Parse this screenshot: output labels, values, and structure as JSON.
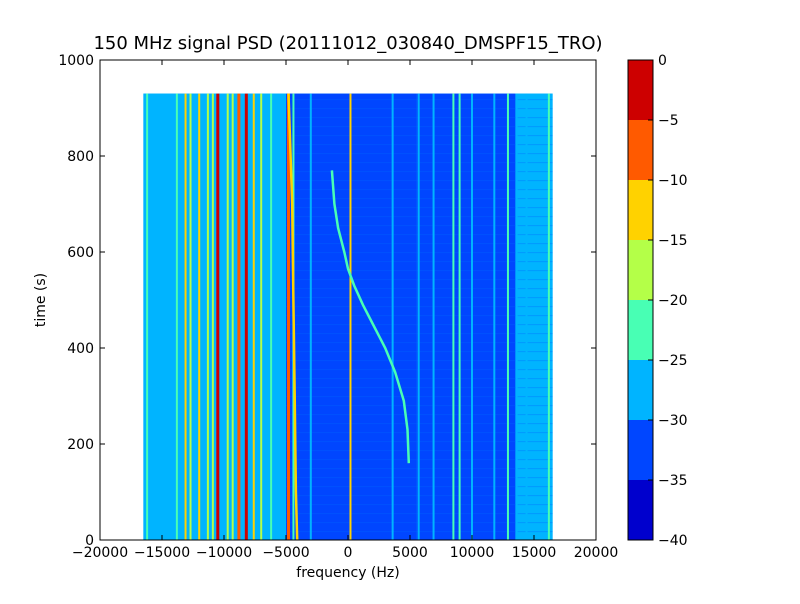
{
  "chart_data": {
    "type": "heatmap",
    "title": "150 MHz signal PSD (20111012_030840_DMSPF15_TRO)",
    "xlabel": "frequency (Hz)",
    "ylabel": "time (s)",
    "xlim": [
      -20000,
      20000
    ],
    "ylim": [
      0,
      1000
    ],
    "xticks": [
      -20000,
      -15000,
      -10000,
      -5000,
      0,
      5000,
      10000,
      15000,
      20000
    ],
    "xtick_labels": [
      "−20000",
      "−15000",
      "−10000",
      "−5000",
      "0",
      "5000",
      "10000",
      "15000",
      "20000"
    ],
    "yticks": [
      0,
      200,
      400,
      600,
      800,
      1000
    ],
    "ytick_labels": [
      "0",
      "200",
      "400",
      "600",
      "800",
      "1000"
    ],
    "data_extent": {
      "x": [
        -16500,
        16500
      ],
      "y": [
        0,
        930
      ]
    },
    "colorbar": {
      "levels": [
        -40,
        -35,
        -30,
        -25,
        -20,
        -15,
        -10,
        -5,
        0
      ],
      "tick_labels": [
        "−40",
        "−35",
        "−30",
        "−25",
        "−20",
        "−15",
        "−10",
        "−5",
        "0"
      ],
      "colors": [
        "#0000cd",
        "#0046ff",
        "#00b4ff",
        "#48ffb4",
        "#b4ff48",
        "#ffd200",
        "#ff5a00",
        "#cd0000"
      ]
    },
    "background_level": -30,
    "regions": [
      {
        "x_from": -16500,
        "x_to": -5000,
        "level": -27
      },
      {
        "x_from": -5000,
        "x_to": 5500,
        "level": -32
      },
      {
        "x_from": 5500,
        "x_to": 13500,
        "level": -33
      },
      {
        "x_from": 13500,
        "x_to": 16500,
        "level": -28
      }
    ],
    "vertical_lines": [
      {
        "x": -16200,
        "level": -22
      },
      {
        "x": -13800,
        "level": -22
      },
      {
        "x": -13100,
        "level": -13
      },
      {
        "x": -12700,
        "level": -20
      },
      {
        "x": -12000,
        "level": -13
      },
      {
        "x": -11300,
        "level": -17
      },
      {
        "x": -10900,
        "level": -20
      },
      {
        "x": -10500,
        "level": -3
      },
      {
        "x": -9700,
        "level": -17
      },
      {
        "x": -9300,
        "level": -20
      },
      {
        "x": -8800,
        "level": -10
      },
      {
        "x": -8200,
        "level": -1
      },
      {
        "x": -7600,
        "level": -13
      },
      {
        "x": -7000,
        "level": -20
      },
      {
        "x": -6200,
        "level": -22
      },
      {
        "x": -4800,
        "level": -9
      },
      {
        "x": -4400,
        "level": -22
      },
      {
        "x": -3000,
        "level": -27
      },
      {
        "x": 200,
        "level": -15
      },
      {
        "x": 3600,
        "level": -28
      },
      {
        "x": 5700,
        "level": -28
      },
      {
        "x": 6900,
        "level": -28
      },
      {
        "x": 8500,
        "level": -23
      },
      {
        "x": 9000,
        "level": -23
      },
      {
        "x": 10000,
        "level": -28
      },
      {
        "x": 11800,
        "level": -28
      },
      {
        "x": 12900,
        "level": -22
      },
      {
        "x": 13600,
        "level": -28
      },
      {
        "x": 14400,
        "level": -28
      },
      {
        "x": 16200,
        "level": -22
      }
    ],
    "traces": [
      {
        "name": "",
        "level": -22,
        "points": [
          [
            -1300,
            770
          ],
          [
            -1100,
            700
          ],
          [
            -800,
            650
          ],
          [
            -300,
            600
          ],
          [
            0,
            565
          ],
          [
            500,
            530
          ],
          [
            1200,
            490
          ],
          [
            2000,
            450
          ],
          [
            3000,
            400
          ],
          [
            3800,
            350
          ],
          [
            4500,
            290
          ],
          [
            4800,
            230
          ],
          [
            4900,
            160
          ]
        ]
      },
      {
        "name": "",
        "level": -15,
        "points": [
          [
            -4800,
            930
          ],
          [
            -4500,
            700
          ],
          [
            -4400,
            500
          ],
          [
            -4300,
            300
          ],
          [
            -4200,
            100
          ],
          [
            -4100,
            0
          ]
        ]
      }
    ]
  }
}
